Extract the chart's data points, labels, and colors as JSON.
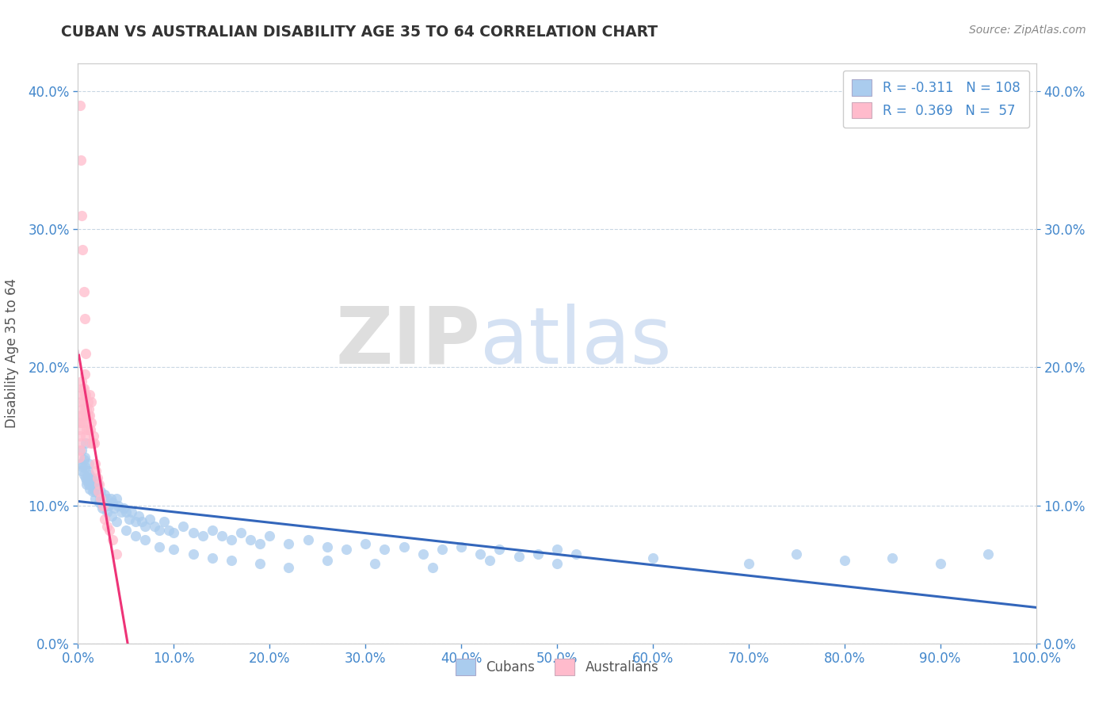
{
  "title": "CUBAN VS AUSTRALIAN DISABILITY AGE 35 TO 64 CORRELATION CHART",
  "source_text": "Source: ZipAtlas.com",
  "ylabel": "Disability Age 35 to 64",
  "title_color": "#333333",
  "source_color": "#888888",
  "axis_tick_color": "#4488cc",
  "ylabel_color": "#555555",
  "legend_r1": "R = -0.311",
  "legend_n1": "N = 108",
  "legend_r2": "R =  0.369",
  "legend_n2": "N =  57",
  "cubans_color": "#aaccee",
  "australians_color": "#ffbbcc",
  "trendline_cubans_color": "#3366bb",
  "trendline_australians_color": "#ee3377",
  "trendline_aus_ext_color": "#ddaacc",
  "watermark_zip": "ZIP",
  "watermark_atlas": "atlas",
  "background_color": "#ffffff",
  "cubans_x": [
    0.003,
    0.004,
    0.005,
    0.006,
    0.007,
    0.008,
    0.009,
    0.01,
    0.011,
    0.012,
    0.013,
    0.014,
    0.015,
    0.016,
    0.017,
    0.018,
    0.019,
    0.02,
    0.022,
    0.024,
    0.026,
    0.028,
    0.03,
    0.032,
    0.034,
    0.036,
    0.038,
    0.04,
    0.042,
    0.045,
    0.048,
    0.05,
    0.053,
    0.056,
    0.06,
    0.063,
    0.067,
    0.07,
    0.075,
    0.08,
    0.085,
    0.09,
    0.095,
    0.1,
    0.11,
    0.12,
    0.13,
    0.14,
    0.15,
    0.16,
    0.17,
    0.18,
    0.19,
    0.2,
    0.22,
    0.24,
    0.26,
    0.28,
    0.3,
    0.32,
    0.34,
    0.36,
    0.38,
    0.4,
    0.42,
    0.44,
    0.46,
    0.48,
    0.5,
    0.52,
    0.004,
    0.006,
    0.007,
    0.009,
    0.01,
    0.012,
    0.015,
    0.018,
    0.022,
    0.025,
    0.03,
    0.035,
    0.04,
    0.05,
    0.06,
    0.07,
    0.085,
    0.1,
    0.12,
    0.14,
    0.16,
    0.19,
    0.22,
    0.26,
    0.31,
    0.37,
    0.43,
    0.5,
    0.6,
    0.7,
    0.75,
    0.8,
    0.85,
    0.9,
    0.95,
    0.008,
    0.011,
    0.02
  ],
  "cubans_y": [
    0.13,
    0.125,
    0.128,
    0.122,
    0.135,
    0.12,
    0.118,
    0.125,
    0.115,
    0.122,
    0.118,
    0.12,
    0.115,
    0.112,
    0.118,
    0.11,
    0.115,
    0.112,
    0.108,
    0.11,
    0.105,
    0.108,
    0.105,
    0.1,
    0.105,
    0.102,
    0.098,
    0.105,
    0.1,
    0.095,
    0.098,
    0.095,
    0.09,
    0.095,
    0.088,
    0.092,
    0.088,
    0.085,
    0.09,
    0.085,
    0.082,
    0.088,
    0.082,
    0.08,
    0.085,
    0.08,
    0.078,
    0.082,
    0.078,
    0.075,
    0.08,
    0.075,
    0.072,
    0.078,
    0.072,
    0.075,
    0.07,
    0.068,
    0.072,
    0.068,
    0.07,
    0.065,
    0.068,
    0.07,
    0.065,
    0.068,
    0.063,
    0.065,
    0.068,
    0.065,
    0.14,
    0.133,
    0.128,
    0.115,
    0.12,
    0.112,
    0.11,
    0.105,
    0.102,
    0.098,
    0.095,
    0.092,
    0.088,
    0.082,
    0.078,
    0.075,
    0.07,
    0.068,
    0.065,
    0.062,
    0.06,
    0.058,
    0.055,
    0.06,
    0.058,
    0.055,
    0.06,
    0.058,
    0.062,
    0.058,
    0.065,
    0.06,
    0.062,
    0.058,
    0.065,
    0.145,
    0.13,
    0.115
  ],
  "australians_x": [
    0.001,
    0.001,
    0.002,
    0.002,
    0.002,
    0.003,
    0.003,
    0.003,
    0.004,
    0.004,
    0.004,
    0.005,
    0.005,
    0.005,
    0.006,
    0.006,
    0.006,
    0.007,
    0.007,
    0.007,
    0.008,
    0.008,
    0.008,
    0.009,
    0.009,
    0.01,
    0.01,
    0.011,
    0.011,
    0.012,
    0.012,
    0.013,
    0.013,
    0.014,
    0.014,
    0.015,
    0.016,
    0.017,
    0.018,
    0.019,
    0.02,
    0.021,
    0.022,
    0.024,
    0.026,
    0.028,
    0.03,
    0.033,
    0.036,
    0.04,
    0.002,
    0.003,
    0.004,
    0.005,
    0.006,
    0.007,
    0.008
  ],
  "australians_y": [
    0.135,
    0.155,
    0.15,
    0.16,
    0.14,
    0.145,
    0.175,
    0.165,
    0.16,
    0.18,
    0.19,
    0.17,
    0.185,
    0.165,
    0.175,
    0.185,
    0.16,
    0.17,
    0.18,
    0.195,
    0.165,
    0.18,
    0.15,
    0.17,
    0.155,
    0.165,
    0.175,
    0.155,
    0.17,
    0.165,
    0.18,
    0.155,
    0.145,
    0.16,
    0.175,
    0.145,
    0.15,
    0.145,
    0.13,
    0.125,
    0.12,
    0.11,
    0.115,
    0.105,
    0.1,
    0.09,
    0.085,
    0.082,
    0.075,
    0.065,
    0.39,
    0.35,
    0.31,
    0.285,
    0.255,
    0.235,
    0.21
  ],
  "xlim": [
    0.0,
    1.0
  ],
  "ylim": [
    0.0,
    0.42
  ]
}
